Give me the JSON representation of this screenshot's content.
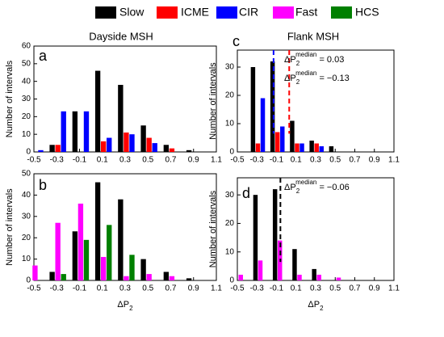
{
  "chart_data": [
    {
      "type": "bar",
      "letter": "a",
      "title": "Dayside MSH",
      "y_label": "Number of intervals",
      "x": [
        -0.5,
        -0.3,
        -0.1,
        0.1,
        0.3,
        0.5,
        0.7,
        0.9
      ],
      "series": [
        {
          "name": "Slow",
          "color": "#000000",
          "values": [
            0,
            4,
            23,
            46,
            38,
            15,
            4,
            1
          ]
        },
        {
          "name": "ICME",
          "color": "#ff0000",
          "values": [
            0,
            4,
            0,
            6,
            11,
            8,
            2,
            0
          ]
        },
        {
          "name": "CIR",
          "color": "#0000ff",
          "values": [
            1,
            23,
            23,
            8,
            10,
            5,
            0,
            0
          ]
        }
      ],
      "xlim": [
        -0.5,
        1.1
      ],
      "xticks": [
        -0.5,
        -0.3,
        -0.1,
        0.1,
        0.3,
        0.5,
        0.7,
        0.9,
        1.1
      ],
      "ylim": [
        0,
        60
      ],
      "yticks": [
        0,
        10,
        20,
        30,
        40,
        50,
        60
      ]
    },
    {
      "type": "bar",
      "letter": "b",
      "y_label": "Number of intervals",
      "x_label": {
        "symbol": "ΔP",
        "sub": "2"
      },
      "x": [
        -0.5,
        -0.3,
        -0.1,
        0.1,
        0.3,
        0.5,
        0.7,
        0.9
      ],
      "series": [
        {
          "name": "Slow",
          "color": "#000000",
          "values": [
            0,
            4,
            23,
            46,
            38,
            10,
            4,
            1
          ]
        },
        {
          "name": "Fast",
          "color": "#ff00ff",
          "values": [
            7,
            27,
            36,
            11,
            2,
            3,
            2,
            0
          ]
        },
        {
          "name": "HCS",
          "color": "#008000",
          "values": [
            0,
            3,
            19,
            26,
            12,
            0,
            0,
            0
          ]
        }
      ],
      "xlim": [
        -0.5,
        1.1
      ],
      "xticks": [
        -0.5,
        -0.3,
        -0.1,
        0.1,
        0.3,
        0.5,
        0.7,
        0.9,
        1.1
      ],
      "ylim": [
        0,
        50
      ],
      "yticks": [
        0,
        10,
        20,
        30,
        40,
        50
      ]
    },
    {
      "type": "bar",
      "letter": "c",
      "title": "Flank MSH",
      "y_label": "Number of intervals",
      "x": [
        -0.3,
        -0.1,
        0.1,
        0.3,
        0.5
      ],
      "series": [
        {
          "name": "Slow",
          "color": "#000000",
          "values": [
            30,
            32,
            11,
            4,
            2
          ]
        },
        {
          "name": "ICME",
          "color": "#ff0000",
          "values": [
            3,
            7,
            3,
            3,
            0
          ]
        },
        {
          "name": "CIR",
          "color": "#0000ff",
          "values": [
            19,
            9,
            3,
            2,
            0
          ]
        }
      ],
      "medians": [
        {
          "value": 0.03,
          "color": "#ff0000",
          "symbol": "ΔP",
          "sub": "2",
          "sup": "median",
          "label": " = 0.03"
        },
        {
          "value": -0.13,
          "color": "#0000ff",
          "symbol": "ΔP",
          "sub": "2",
          "sup": "median",
          "label": " = −0.13"
        }
      ],
      "xlim": [
        -0.5,
        1.1
      ],
      "xticks": [
        -0.5,
        -0.3,
        -0.1,
        0.1,
        0.3,
        0.5,
        0.7,
        0.9,
        1.1
      ],
      "ylim": [
        0,
        36
      ],
      "yticks": [
        0,
        10,
        20,
        30
      ]
    },
    {
      "type": "bar",
      "letter": "d",
      "y_label": "Number of intervals",
      "x_label": {
        "symbol": "ΔP",
        "sub": "2"
      },
      "x": [
        -0.5,
        -0.3,
        -0.1,
        0.1,
        0.3,
        0.5
      ],
      "series": [
        {
          "name": "Slow",
          "color": "#000000",
          "values": [
            0,
            30,
            32,
            11,
            4,
            0
          ]
        },
        {
          "name": "Fast",
          "color": "#ff00ff",
          "values": [
            2,
            7,
            14,
            2,
            2,
            1
          ]
        }
      ],
      "medians": [
        {
          "value": -0.06,
          "color": "#000000",
          "symbol": "ΔP",
          "sub": "2",
          "sup": "median",
          "label": " = −0.06"
        }
      ],
      "xlim": [
        -0.5,
        1.1
      ],
      "xticks": [
        -0.5,
        -0.3,
        -0.1,
        0.1,
        0.3,
        0.5,
        0.7,
        0.9,
        1.1
      ],
      "ylim": [
        0,
        36
      ],
      "yticks": [
        0,
        10,
        20,
        30
      ]
    }
  ]
}
